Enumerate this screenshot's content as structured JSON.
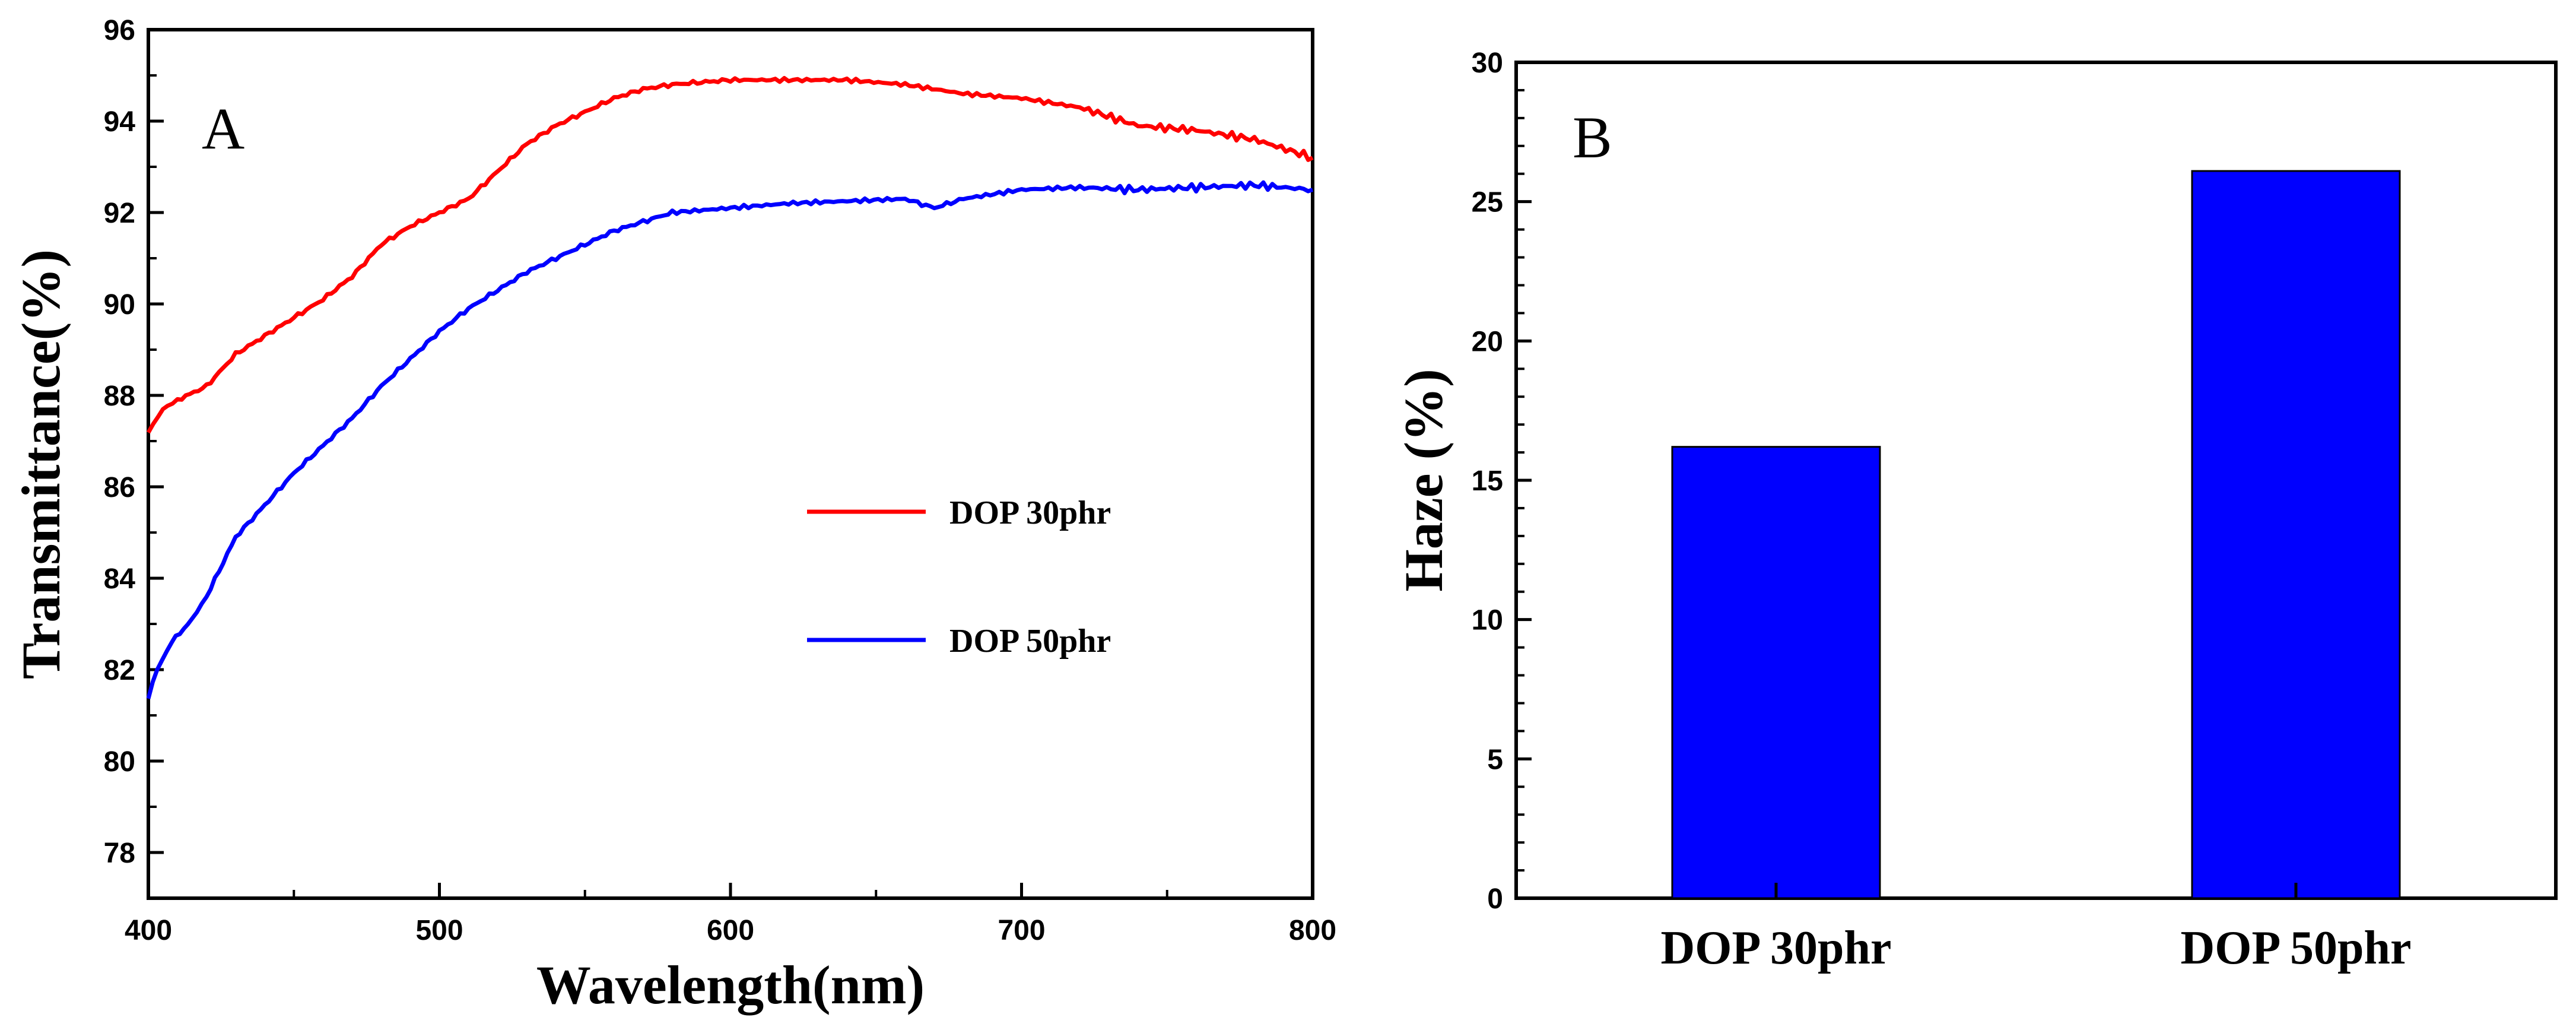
{
  "chart_data": [
    {
      "type": "line",
      "panel": "A",
      "xlabel": "Wavelength(nm)",
      "ylabel": "Transmittance(%)",
      "xlim": [
        400,
        800
      ],
      "ylim": [
        77,
        96
      ],
      "xticks": [
        400,
        500,
        600,
        700,
        800
      ],
      "yticks": [
        78,
        80,
        82,
        84,
        86,
        88,
        90,
        92,
        94,
        96
      ],
      "grid": false,
      "legend_position": "right",
      "series": [
        {
          "name": "DOP 30phr",
          "color": "#ff0000",
          "x": [
            400,
            405,
            410,
            420,
            430,
            440,
            450,
            460,
            470,
            480,
            490,
            500,
            510,
            520,
            530,
            540,
            550,
            560,
            570,
            580,
            590,
            600,
            620,
            640,
            660,
            680,
            700,
            720,
            740,
            760,
            780,
            800
          ],
          "y": [
            87.2,
            87.7,
            87.9,
            88.2,
            88.9,
            89.3,
            89.7,
            90.1,
            90.6,
            91.3,
            91.7,
            92.0,
            92.3,
            92.9,
            93.5,
            93.9,
            94.2,
            94.5,
            94.7,
            94.8,
            94.85,
            94.9,
            94.9,
            94.9,
            94.8,
            94.6,
            94.5,
            94.3,
            93.9,
            93.8,
            93.6,
            93.2
          ]
        },
        {
          "name": "DOP 50phr",
          "color": "#0000ff",
          "x": [
            400,
            403,
            408,
            415,
            420,
            430,
            440,
            450,
            460,
            470,
            480,
            490,
            500,
            510,
            520,
            530,
            540,
            550,
            560,
            570,
            580,
            600,
            620,
            640,
            660,
            670,
            680,
            700,
            720,
            740,
            760,
            780,
            800
          ],
          "y": [
            81.4,
            82.0,
            82.6,
            83.1,
            83.6,
            84.9,
            85.6,
            86.3,
            86.9,
            87.5,
            88.2,
            88.8,
            89.4,
            89.9,
            90.3,
            90.7,
            91.0,
            91.3,
            91.6,
            91.8,
            92.0,
            92.1,
            92.2,
            92.25,
            92.3,
            92.1,
            92.3,
            92.5,
            92.55,
            92.5,
            92.55,
            92.6,
            92.5
          ]
        }
      ],
      "panel_label": "A"
    },
    {
      "type": "bar",
      "panel": "B",
      "categories": [
        "DOP 30phr",
        "DOP 50phr"
      ],
      "values": [
        16.2,
        26.1
      ],
      "bar_color": "#0000ff",
      "xlabel": "",
      "ylabel": "Haze (%)",
      "ylim": [
        0,
        30
      ],
      "yticks": [
        0,
        5,
        10,
        15,
        20,
        25,
        30
      ],
      "grid": false,
      "panel_label": "B"
    }
  ]
}
